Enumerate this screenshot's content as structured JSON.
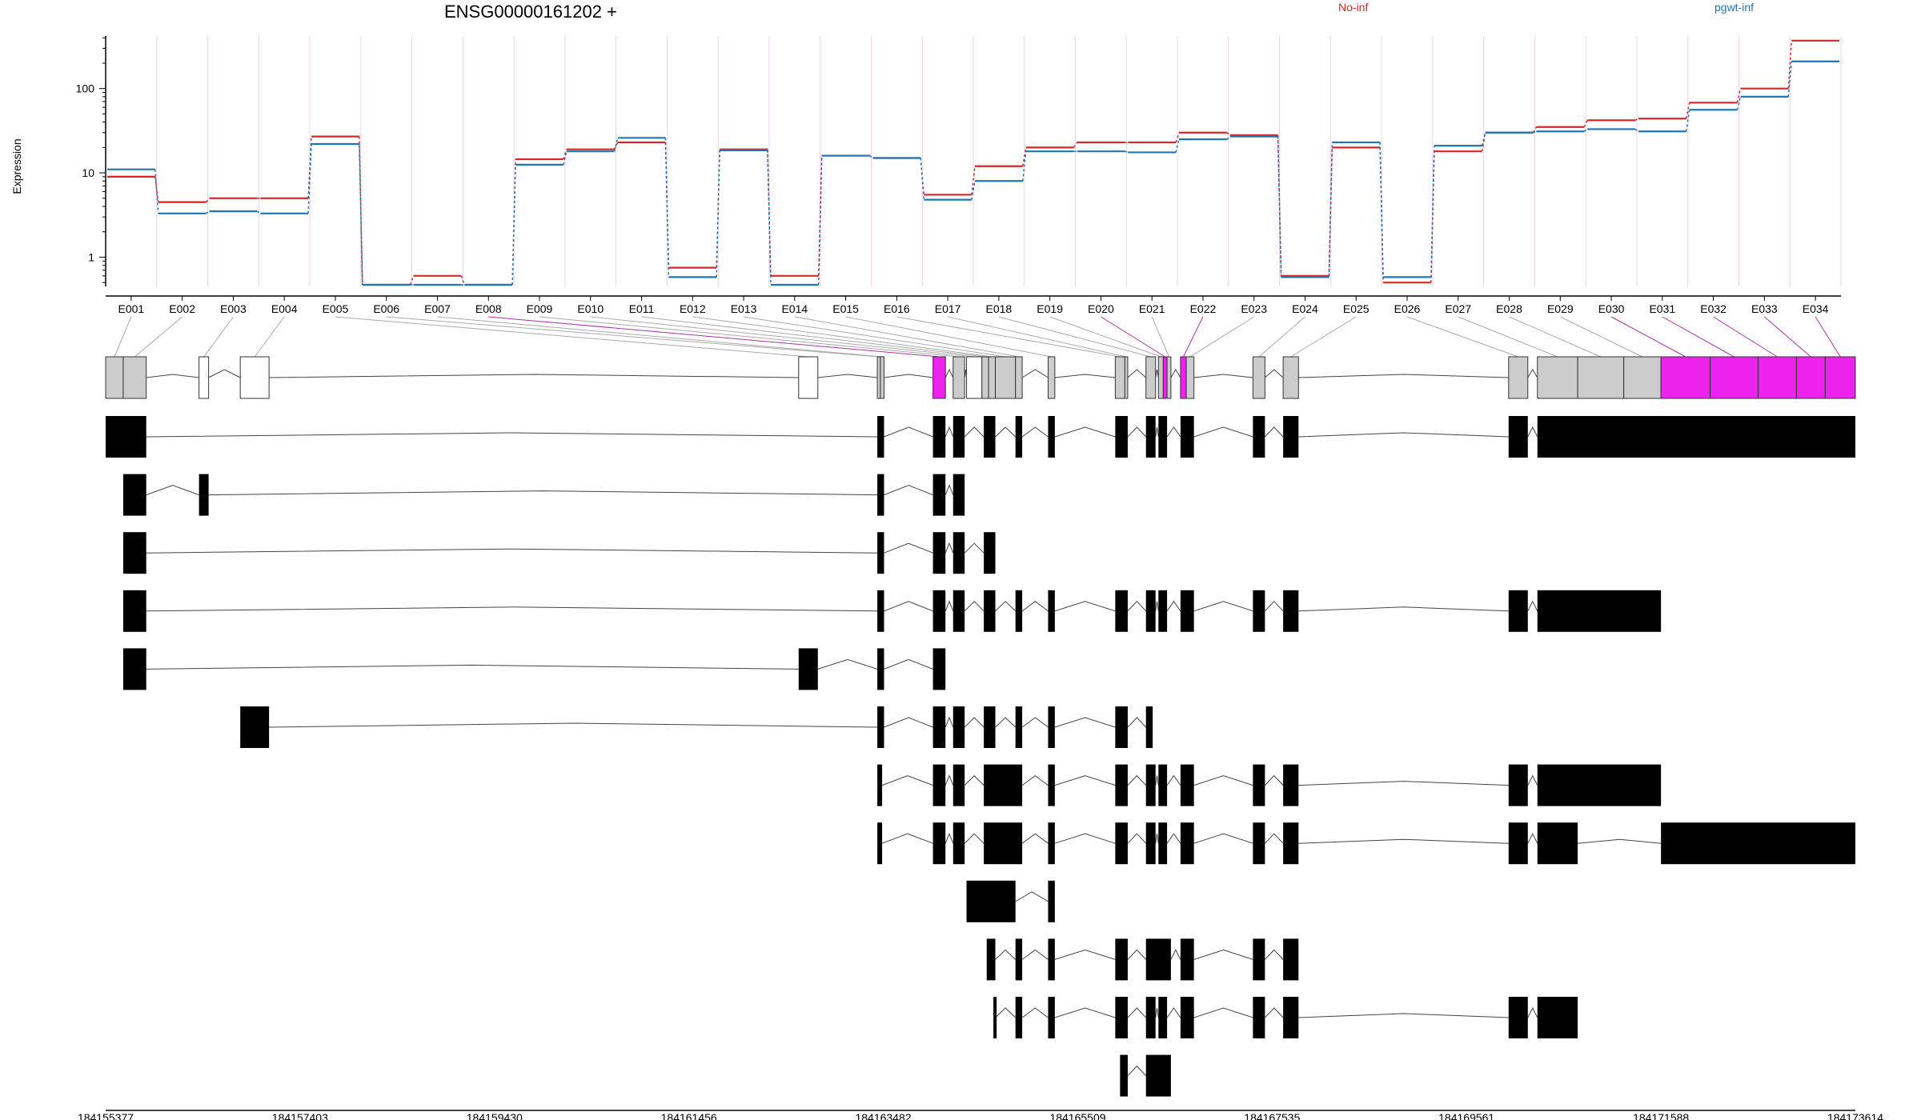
{
  "chart_data": {
    "type": "line",
    "title": "ENSG00000161202 +",
    "ylabel": "Expression",
    "yscale": "log",
    "ylim": [
      0.45,
      420
    ],
    "yticks": [
      "1",
      "10",
      "100"
    ],
    "categories": [
      "E001",
      "E002",
      "E003",
      "E004",
      "E005",
      "E006",
      "E007",
      "E008",
      "E009",
      "E010",
      "E011",
      "E012",
      "E013",
      "E014",
      "E015",
      "E016",
      "E017",
      "E018",
      "E019",
      "E020",
      "E021",
      "E022",
      "E023",
      "E024",
      "E025",
      "E026",
      "E027",
      "E028",
      "E029",
      "E030",
      "E031",
      "E032",
      "E033",
      "E034"
    ],
    "series": [
      {
        "name": "No-inf",
        "color": "#d62728",
        "values": [
          9,
          4.5,
          5,
          5,
          27,
          0.47,
          0.6,
          0.47,
          14.5,
          19,
          23,
          0.75,
          19,
          0.6,
          16,
          15,
          5.5,
          12,
          20,
          23,
          23,
          30,
          28,
          0.6,
          20,
          0.5,
          18,
          30,
          35,
          42,
          44,
          68,
          100,
          370
        ]
      },
      {
        "name": "pgwt-inf",
        "color": "#1f77b4",
        "values": [
          11,
          3.3,
          3.5,
          3.3,
          22,
          0.47,
          0.47,
          0.47,
          12.5,
          18,
          26,
          0.58,
          18.5,
          0.47,
          16,
          15,
          4.8,
          8,
          18,
          18,
          17.5,
          25,
          27,
          0.58,
          23,
          0.58,
          21,
          30,
          31,
          33,
          31,
          56,
          80,
          210
        ]
      }
    ],
    "genome_axis": {
      "range": [
        184155377,
        184173614
      ],
      "ticks": [
        "184155377",
        "184157403",
        "184159430",
        "184161456",
        "184163482",
        "184165509",
        "184167535",
        "184169561",
        "184171588",
        "184173614"
      ]
    },
    "exons": [
      {
        "id": "E001",
        "start": 184155377,
        "end": 184155560,
        "fill": "gray"
      },
      {
        "id": "E002",
        "start": 184155560,
        "end": 184155800,
        "fill": "gray"
      },
      {
        "id": "E003",
        "start": 184156350,
        "end": 184156450,
        "fill": "white"
      },
      {
        "id": "E004",
        "start": 184156780,
        "end": 184157080,
        "fill": "white"
      },
      {
        "id": "E005",
        "start": 184162600,
        "end": 184162800,
        "fill": "white"
      },
      {
        "id": "E006",
        "start": 184163420,
        "end": 184163452,
        "fill": "gray"
      },
      {
        "id": "E007",
        "start": 184163452,
        "end": 184163490,
        "fill": "gray"
      },
      {
        "id": "E008",
        "start": 184164000,
        "end": 184164130,
        "fill": "magenta"
      },
      {
        "id": "E009",
        "start": 184164210,
        "end": 184164330,
        "fill": "gray"
      },
      {
        "id": "E010",
        "start": 184164350,
        "end": 184164510,
        "fill": "white"
      },
      {
        "id": "E011",
        "start": 184164510,
        "end": 184164580,
        "fill": "gray"
      },
      {
        "id": "E012",
        "start": 184164580,
        "end": 184164650,
        "fill": "gray"
      },
      {
        "id": "E013",
        "start": 184164650,
        "end": 184164860,
        "fill": "gray"
      },
      {
        "id": "E014",
        "start": 184164860,
        "end": 184164930,
        "fill": "gray"
      },
      {
        "id": "E015",
        "start": 184165200,
        "end": 184165270,
        "fill": "gray"
      },
      {
        "id": "E016",
        "start": 184165900,
        "end": 184166000,
        "fill": "gray"
      },
      {
        "id": "E017",
        "start": 184166000,
        "end": 184166030,
        "fill": "gray"
      },
      {
        "id": "E018",
        "start": 184166220,
        "end": 184166320,
        "fill": "gray"
      },
      {
        "id": "E019",
        "start": 184166350,
        "end": 184166400,
        "fill": "gray"
      },
      {
        "id": "E020",
        "start": 184166400,
        "end": 184166440,
        "fill": "magenta"
      },
      {
        "id": "E021",
        "start": 184166440,
        "end": 184166480,
        "fill": "gray"
      },
      {
        "id": "E022",
        "start": 184166580,
        "end": 184166640,
        "fill": "magenta"
      },
      {
        "id": "E023",
        "start": 184166640,
        "end": 184166720,
        "fill": "gray"
      },
      {
        "id": "E024",
        "start": 184167335,
        "end": 184167460,
        "fill": "gray"
      },
      {
        "id": "E025",
        "start": 184167650,
        "end": 184167810,
        "fill": "gray"
      },
      {
        "id": "E026",
        "start": 184170000,
        "end": 184170200,
        "fill": "gray"
      },
      {
        "id": "E027",
        "start": 184170300,
        "end": 184170720,
        "fill": "gray"
      },
      {
        "id": "E028",
        "start": 184170720,
        "end": 184171200,
        "fill": "gray"
      },
      {
        "id": "E029",
        "start": 184171200,
        "end": 184171588,
        "fill": "gray"
      },
      {
        "id": "E030",
        "start": 184171588,
        "end": 184172100,
        "fill": "magenta"
      },
      {
        "id": "E031",
        "start": 184172100,
        "end": 184172600,
        "fill": "magenta"
      },
      {
        "id": "E032",
        "start": 184172600,
        "end": 184173000,
        "fill": "magenta"
      },
      {
        "id": "E033",
        "start": 184173000,
        "end": 184173300,
        "fill": "magenta"
      },
      {
        "id": "E034",
        "start": 184173300,
        "end": 184173614,
        "fill": "magenta"
      }
    ],
    "transcripts": [
      [
        [
          184155377,
          184155800
        ],
        [
          184163420,
          184163490
        ],
        [
          184164000,
          184164130
        ],
        [
          184164210,
          184164330
        ],
        [
          184164530,
          184164650
        ],
        [
          184164860,
          184164930
        ],
        [
          184165200,
          184165270
        ],
        [
          184165900,
          184166030
        ],
        [
          184166220,
          184166320
        ],
        [
          184166350,
          184166440
        ],
        [
          184166580,
          184166720
        ],
        [
          184167335,
          184167460
        ],
        [
          184167650,
          184167810
        ],
        [
          184170000,
          184170200
        ],
        [
          184170300,
          184173614
        ]
      ],
      [
        [
          184155560,
          184155800
        ],
        [
          184156350,
          184156450
        ],
        [
          184163420,
          184163490
        ],
        [
          184164000,
          184164130
        ],
        [
          184164210,
          184164330
        ]
      ],
      [
        [
          184155560,
          184155800
        ],
        [
          184163420,
          184163490
        ],
        [
          184164000,
          184164130
        ],
        [
          184164210,
          184164330
        ],
        [
          184164530,
          184164650
        ]
      ],
      [
        [
          184155560,
          184155800
        ],
        [
          184163420,
          184163490
        ],
        [
          184164000,
          184164130
        ],
        [
          184164210,
          184164330
        ],
        [
          184164530,
          184164650
        ],
        [
          184164860,
          184164930
        ],
        [
          184165200,
          184165270
        ],
        [
          184165900,
          184166030
        ],
        [
          184166220,
          184166320
        ],
        [
          184166350,
          184166440
        ],
        [
          184166580,
          184166720
        ],
        [
          184167335,
          184167460
        ],
        [
          184167650,
          184167810
        ],
        [
          184170000,
          184170200
        ],
        [
          184170300,
          184171588
        ]
      ],
      [
        [
          184155560,
          184155800
        ],
        [
          184162600,
          184162800
        ],
        [
          184163420,
          184163490
        ],
        [
          184164000,
          184164130
        ]
      ],
      [
        [
          184156780,
          184157080
        ],
        [
          184163420,
          184163490
        ],
        [
          184164000,
          184164130
        ],
        [
          184164210,
          184164330
        ],
        [
          184164530,
          184164650
        ],
        [
          184164860,
          184164930
        ],
        [
          184165200,
          184165270
        ],
        [
          184165900,
          184166030
        ],
        [
          184166220,
          184166290
        ]
      ],
      [
        [
          184163420,
          184163470
        ],
        [
          184164000,
          184164130
        ],
        [
          184164210,
          184164330
        ],
        [
          184164530,
          184164930
        ],
        [
          184165200,
          184165270
        ],
        [
          184165900,
          184166030
        ],
        [
          184166220,
          184166320
        ],
        [
          184166350,
          184166440
        ],
        [
          184166580,
          184166720
        ],
        [
          184167335,
          184167460
        ],
        [
          184167650,
          184167810
        ],
        [
          184170000,
          184170200
        ],
        [
          184170300,
          184171588
        ]
      ],
      [
        [
          184163420,
          184163470
        ],
        [
          184164000,
          184164130
        ],
        [
          184164210,
          184164330
        ],
        [
          184164530,
          184164930
        ],
        [
          184165200,
          184165270
        ],
        [
          184165900,
          184166030
        ],
        [
          184166220,
          184166320
        ],
        [
          184166350,
          184166440
        ],
        [
          184166580,
          184166720
        ],
        [
          184167335,
          184167460
        ],
        [
          184167650,
          184167810
        ],
        [
          184170000,
          184170200
        ],
        [
          184170300,
          184170720
        ],
        [
          184171588,
          184173614
        ]
      ],
      [
        [
          184164350,
          184164860
        ],
        [
          184165200,
          184165270
        ]
      ],
      [
        [
          184164560,
          184164650
        ],
        [
          184164860,
          184164930
        ],
        [
          184165200,
          184165270
        ],
        [
          184165900,
          184166030
        ],
        [
          184166220,
          184166480
        ],
        [
          184166580,
          184166720
        ],
        [
          184167335,
          184167460
        ],
        [
          184167650,
          184167810
        ]
      ],
      [
        [
          184164630,
          184164650
        ],
        [
          184164860,
          184164930
        ],
        [
          184165200,
          184165270
        ],
        [
          184165900,
          184166030
        ],
        [
          184166220,
          184166320
        ],
        [
          184166350,
          184166440
        ],
        [
          184166580,
          184166720
        ],
        [
          184167335,
          184167460
        ],
        [
          184167650,
          184167810
        ],
        [
          184170000,
          184170200
        ],
        [
          184170300,
          184170720
        ]
      ],
      [
        [
          184165950,
          184166030
        ],
        [
          184166220,
          184166480
        ]
      ]
    ]
  }
}
